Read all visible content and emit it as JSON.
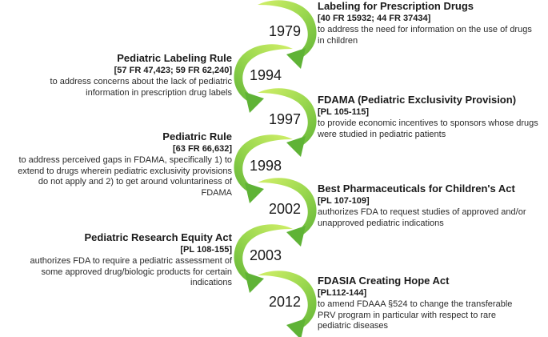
{
  "colors": {
    "arrow_light": "#c6ea5a",
    "arrow_mid": "#8fd14f",
    "arrow_dark": "#5fb336",
    "text": "#222222"
  },
  "timeline": [
    {
      "year": "1979",
      "side": "right",
      "title": "Labeling for Prescription Drugs",
      "citation": "[40 FR 15932; 44 FR 37434]",
      "description": "to address the need for information on the use of drugs in children"
    },
    {
      "year": "1994",
      "side": "left",
      "title": "Pediatric Labeling Rule",
      "citation": "[57 FR 47,423; 59 FR 62,240]",
      "description": "to address concerns about the lack of pediatric information in prescription drug labels"
    },
    {
      "year": "1997",
      "side": "right",
      "title": "FDAMA (Pediatric Exclusivity Provision)",
      "citation": "[PL 105-115]",
      "description": "to provide economic incentives to sponsors  whose drugs were studied in pediatric patients"
    },
    {
      "year": "1998",
      "side": "left",
      "title": "Pediatric Rule",
      "citation": "[63 FR 66,632]",
      "description": "to address perceived gaps in FDAMA, specifically 1) to extend to drugs wherein pediatric exclusivity provisions do not apply and 2) to get around voluntariness of FDAMA"
    },
    {
      "year": "2002",
      "side": "right",
      "title": "Best Pharmaceuticals for Children's Act",
      "citation": "[PL 107-109]",
      "description": "authorizes FDA to request studies of approved and/or unapproved pediatric indications"
    },
    {
      "year": "2003",
      "side": "left",
      "title": "Pediatric Research Equity Act",
      "citation": "[PL 108-155]",
      "description": "authorizes FDA to require a pediatric assessment of some approved drug/biologic products for certain indications"
    },
    {
      "year": "2012",
      "side": "right",
      "title": "FDASIA Creating Hope Act",
      "citation": "[PL112-144]",
      "description": "to amend FDAAA §524 to change the transferable PRV program in particular with respect to rare pediatric diseases"
    }
  ]
}
